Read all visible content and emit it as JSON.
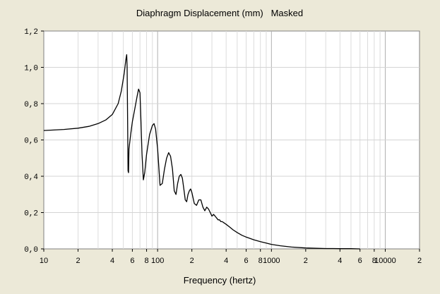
{
  "chart_data": {
    "type": "line",
    "title": "Diaphragm Displacement (mm)   Masked",
    "xlabel": "Frequency (hertz)",
    "ylabel": "",
    "x_scale": "log",
    "xlim": [
      10,
      20000
    ],
    "ylim": [
      0,
      1.2
    ],
    "grid": true,
    "y_ticks": [
      {
        "value": 0.0,
        "label": "0,0"
      },
      {
        "value": 0.2,
        "label": "0,2"
      },
      {
        "value": 0.4,
        "label": "0,4"
      },
      {
        "value": 0.6,
        "label": "0,6"
      },
      {
        "value": 0.8,
        "label": "0,8"
      },
      {
        "value": 1.0,
        "label": "1,0"
      },
      {
        "value": 1.2,
        "label": "1,2"
      }
    ],
    "x_ticks": [
      {
        "value": 10,
        "label": "10"
      },
      {
        "value": 20,
        "label": "2"
      },
      {
        "value": 40,
        "label": "4"
      },
      {
        "value": 60,
        "label": "6"
      },
      {
        "value": 80,
        "label": "8"
      },
      {
        "value": 100,
        "label": "100"
      },
      {
        "value": 200,
        "label": "2"
      },
      {
        "value": 400,
        "label": "4"
      },
      {
        "value": 600,
        "label": "6"
      },
      {
        "value": 800,
        "label": "8"
      },
      {
        "value": 1000,
        "label": "1000"
      },
      {
        "value": 2000,
        "label": "2"
      },
      {
        "value": 4000,
        "label": "4"
      },
      {
        "value": 6000,
        "label": "6"
      },
      {
        "value": 8000,
        "label": "8"
      },
      {
        "value": 10000,
        "label": "10000"
      },
      {
        "value": 20000,
        "label": "2"
      }
    ],
    "series": [
      {
        "color": "#000000",
        "x": [
          10,
          15,
          20,
          25,
          30,
          35,
          40,
          45,
          48,
          51,
          52.5,
          53.5,
          54,
          54.5,
          55,
          55.5,
          56,
          58,
          60,
          63,
          66,
          68,
          70,
          71,
          73,
          75,
          77,
          80,
          85,
          90,
          93,
          96,
          100,
          105,
          110,
          115,
          120,
          125,
          130,
          135,
          140,
          145,
          150,
          155,
          160,
          165,
          170,
          175,
          180,
          185,
          190,
          195,
          200,
          210,
          220,
          230,
          240,
          250,
          260,
          270,
          280,
          290,
          300,
          310,
          320,
          330,
          340,
          350,
          360,
          370,
          380,
          390,
          400,
          430,
          460,
          500,
          550,
          600,
          700,
          800,
          900,
          1000,
          1200,
          1500,
          2000,
          2500,
          3000,
          3500,
          4000,
          5000,
          6000
        ],
        "y": [
          0.652,
          0.658,
          0.665,
          0.675,
          0.69,
          0.71,
          0.74,
          0.8,
          0.87,
          0.97,
          1.04,
          1.07,
          1.0,
          0.7,
          0.43,
          0.42,
          0.55,
          0.63,
          0.7,
          0.77,
          0.84,
          0.88,
          0.86,
          0.75,
          0.52,
          0.38,
          0.42,
          0.52,
          0.63,
          0.68,
          0.69,
          0.66,
          0.55,
          0.35,
          0.36,
          0.44,
          0.5,
          0.53,
          0.51,
          0.44,
          0.32,
          0.3,
          0.36,
          0.4,
          0.41,
          0.39,
          0.33,
          0.27,
          0.26,
          0.3,
          0.32,
          0.33,
          0.31,
          0.25,
          0.24,
          0.27,
          0.27,
          0.23,
          0.21,
          0.23,
          0.22,
          0.2,
          0.18,
          0.19,
          0.18,
          0.17,
          0.16,
          0.16,
          0.15,
          0.15,
          0.145,
          0.14,
          0.135,
          0.12,
          0.105,
          0.09,
          0.075,
          0.065,
          0.05,
          0.04,
          0.032,
          0.025,
          0.017,
          0.01,
          0.005,
          0.003,
          0.002,
          0.002,
          0.001,
          0.001,
          0.0
        ]
      }
    ]
  }
}
